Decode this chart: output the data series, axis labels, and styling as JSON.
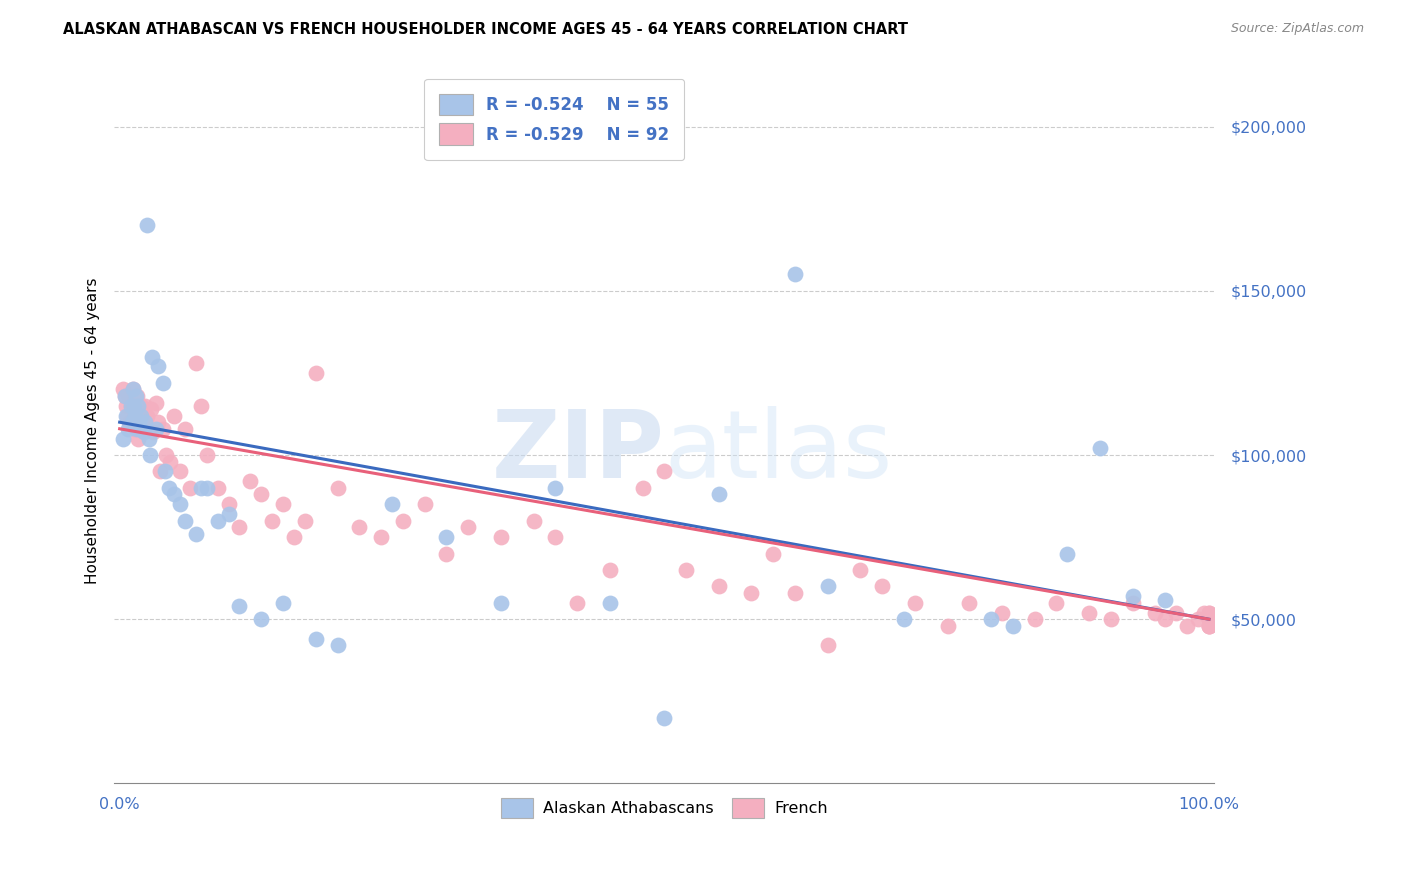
{
  "title": "ALASKAN ATHABASCAN VS FRENCH HOUSEHOLDER INCOME AGES 45 - 64 YEARS CORRELATION CHART",
  "source": "Source: ZipAtlas.com",
  "ylabel": "Householder Income Ages 45 - 64 years",
  "blue_color": "#a8c4e8",
  "pink_color": "#f4afc0",
  "blue_line_color": "#3a6abf",
  "pink_line_color": "#e8607a",
  "label_color": "#4472c4",
  "watermark_color": "#dce8f8",
  "blue_intercept": 110000,
  "blue_slope": -60000,
  "pink_intercept": 108000,
  "pink_slope": -58000,
  "blue_x": [
    0.003,
    0.005,
    0.006,
    0.008,
    0.01,
    0.011,
    0.012,
    0.013,
    0.014,
    0.015,
    0.016,
    0.017,
    0.018,
    0.019,
    0.02,
    0.022,
    0.023,
    0.025,
    0.027,
    0.028,
    0.03,
    0.033,
    0.035,
    0.04,
    0.042,
    0.045,
    0.05,
    0.055,
    0.06,
    0.07,
    0.075,
    0.08,
    0.09,
    0.1,
    0.11,
    0.13,
    0.15,
    0.18,
    0.2,
    0.25,
    0.3,
    0.35,
    0.4,
    0.45,
    0.5,
    0.55,
    0.62,
    0.65,
    0.72,
    0.8,
    0.82,
    0.87,
    0.9,
    0.93,
    0.96
  ],
  "blue_y": [
    105000,
    118000,
    112000,
    108000,
    115000,
    110000,
    120000,
    115000,
    112000,
    118000,
    108000,
    115000,
    110000,
    108000,
    112000,
    107000,
    110000,
    170000,
    105000,
    100000,
    130000,
    108000,
    127000,
    122000,
    95000,
    90000,
    88000,
    85000,
    80000,
    76000,
    90000,
    90000,
    80000,
    82000,
    54000,
    50000,
    55000,
    44000,
    42000,
    85000,
    75000,
    55000,
    90000,
    55000,
    20000,
    88000,
    155000,
    60000,
    50000,
    50000,
    48000,
    70000,
    102000,
    57000,
    56000
  ],
  "pink_x": [
    0.003,
    0.005,
    0.006,
    0.007,
    0.008,
    0.009,
    0.01,
    0.011,
    0.012,
    0.013,
    0.014,
    0.015,
    0.016,
    0.017,
    0.018,
    0.019,
    0.02,
    0.021,
    0.022,
    0.023,
    0.025,
    0.027,
    0.029,
    0.031,
    0.033,
    0.035,
    0.037,
    0.04,
    0.043,
    0.046,
    0.05,
    0.055,
    0.06,
    0.065,
    0.07,
    0.075,
    0.08,
    0.09,
    0.1,
    0.11,
    0.12,
    0.13,
    0.14,
    0.15,
    0.16,
    0.17,
    0.18,
    0.2,
    0.22,
    0.24,
    0.26,
    0.28,
    0.3,
    0.32,
    0.35,
    0.38,
    0.4,
    0.42,
    0.45,
    0.48,
    0.5,
    0.52,
    0.55,
    0.58,
    0.6,
    0.62,
    0.65,
    0.68,
    0.7,
    0.73,
    0.76,
    0.78,
    0.81,
    0.84,
    0.86,
    0.89,
    0.91,
    0.93,
    0.95,
    0.96,
    0.97,
    0.98,
    0.99,
    0.995,
    1.0,
    1.0,
    1.0,
    1.0,
    1.0,
    1.0,
    1.0,
    1.0
  ],
  "pink_y": [
    120000,
    118000,
    115000,
    112000,
    118000,
    110000,
    115000,
    110000,
    120000,
    112000,
    108000,
    115000,
    118000,
    105000,
    112000,
    108000,
    115000,
    110000,
    108000,
    115000,
    112000,
    108000,
    114000,
    107000,
    116000,
    110000,
    95000,
    108000,
    100000,
    98000,
    112000,
    95000,
    108000,
    90000,
    128000,
    115000,
    100000,
    90000,
    85000,
    78000,
    92000,
    88000,
    80000,
    85000,
    75000,
    80000,
    125000,
    90000,
    78000,
    75000,
    80000,
    85000,
    70000,
    78000,
    75000,
    80000,
    75000,
    55000,
    65000,
    90000,
    95000,
    65000,
    60000,
    58000,
    70000,
    58000,
    42000,
    65000,
    60000,
    55000,
    48000,
    55000,
    52000,
    50000,
    55000,
    52000,
    50000,
    55000,
    52000,
    50000,
    52000,
    48000,
    50000,
    52000,
    48000,
    50000,
    52000,
    48000,
    50000,
    52000,
    48000,
    50000
  ]
}
